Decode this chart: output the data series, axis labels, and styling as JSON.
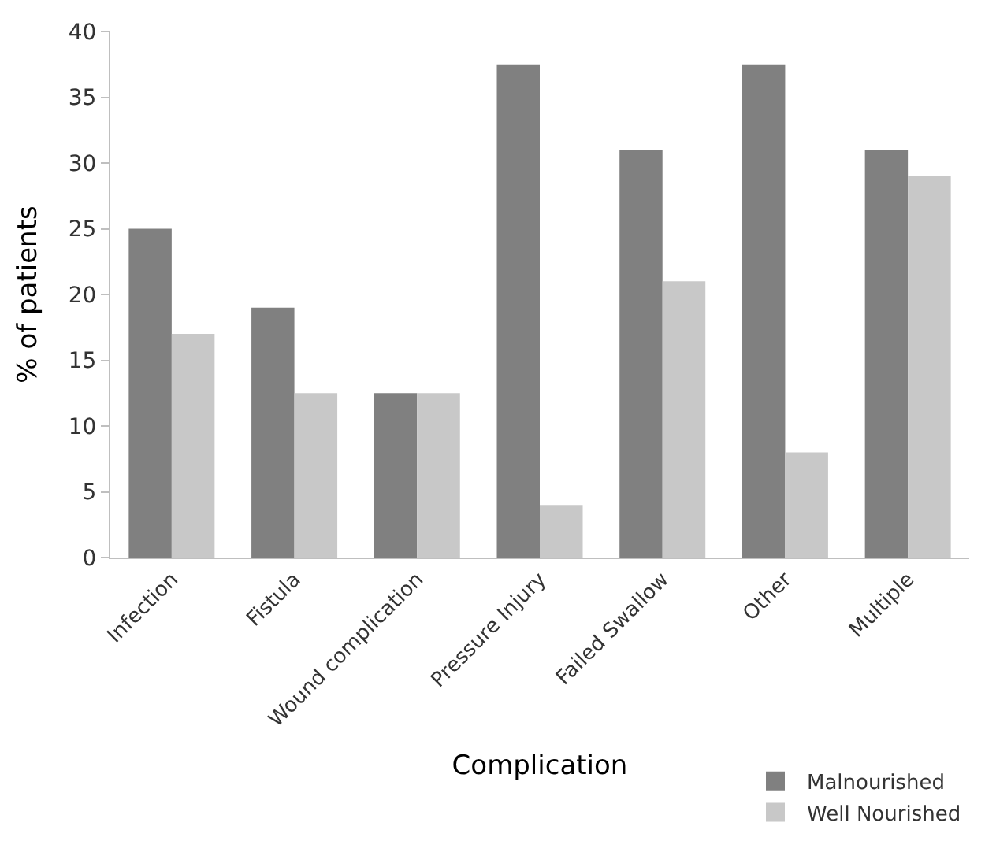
{
  "chart_data": {
    "type": "bar",
    "xlabel": "Complication",
    "ylabel": "% of patients",
    "categories": [
      "Infection",
      "Fistula",
      "Wound complication",
      "Pressure Injury",
      "Failed Swallow",
      "Other",
      "Multiple"
    ],
    "series": [
      {
        "name": "Malnourished",
        "color": "#808080",
        "values": [
          25,
          19,
          12.5,
          37.5,
          31,
          37.5,
          31
        ]
      },
      {
        "name": "Well Nourished",
        "color": "#c8c8c8",
        "values": [
          17,
          12.5,
          12.5,
          4,
          21,
          8,
          29
        ]
      }
    ],
    "ylim": [
      0,
      40
    ],
    "yticks": [
      0,
      5,
      10,
      15,
      20,
      25,
      30,
      35,
      40
    ],
    "legend": "bottom right"
  }
}
